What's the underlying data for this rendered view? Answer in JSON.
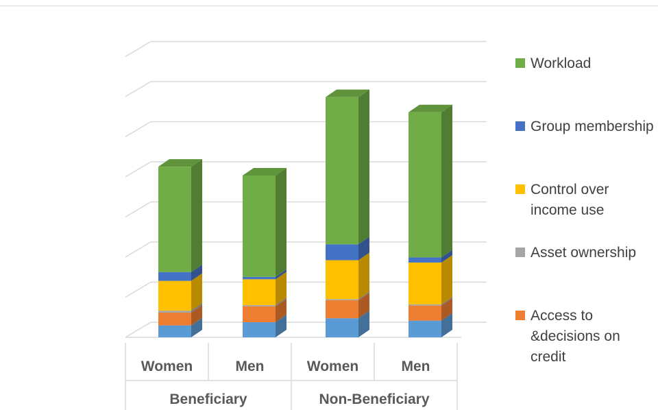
{
  "chart_data": {
    "type": "bar",
    "stacked": true,
    "three_d": true,
    "title": "",
    "xlabel": "",
    "ylabel": "",
    "ylim": [
      0,
      7.5
    ],
    "y_tick_labels_visible": false,
    "grid": true,
    "legend_position": "right",
    "groups": [
      {
        "label": "Beneficiary",
        "categories": [
          "Women",
          "Men"
        ]
      },
      {
        "label": "Non-Beneficiary",
        "categories": [
          "Women",
          "Men"
        ]
      }
    ],
    "categories": [
      "Women",
      "Men",
      "Women",
      "Men"
    ],
    "series": [
      {
        "name": "Access to &decisions on credit",
        "values": [
          0.32,
          0.4,
          0.45,
          0.38
        ],
        "color": "#5b9bd5",
        "color_orange": "#ed7d31"
      },
      {
        "name": "Asset ownership",
        "values": [
          0.05,
          0.03,
          0.03,
          0.03
        ],
        "color": "#a5a5a5"
      },
      {
        "name": "Control over income use",
        "values": [
          0.75,
          0.65,
          0.98,
          1.05
        ],
        "color": "#ffc000"
      },
      {
        "name": "Group membership",
        "values": [
          0.22,
          0.06,
          0.4,
          0.13
        ],
        "color": "#4472c4"
      },
      {
        "name": "Workload",
        "values": [
          2.65,
          2.55,
          3.7,
          3.65
        ],
        "color": "#70ad47"
      }
    ],
    "base_segment": {
      "name": "",
      "values": [
        0.3,
        0.38,
        0.48,
        0.42
      ],
      "color": "#5b9bd5"
    },
    "legend_order": [
      "Workload",
      "Group membership",
      "Control over income use",
      "Asset ownership",
      "Access to &decisions on credit"
    ]
  }
}
